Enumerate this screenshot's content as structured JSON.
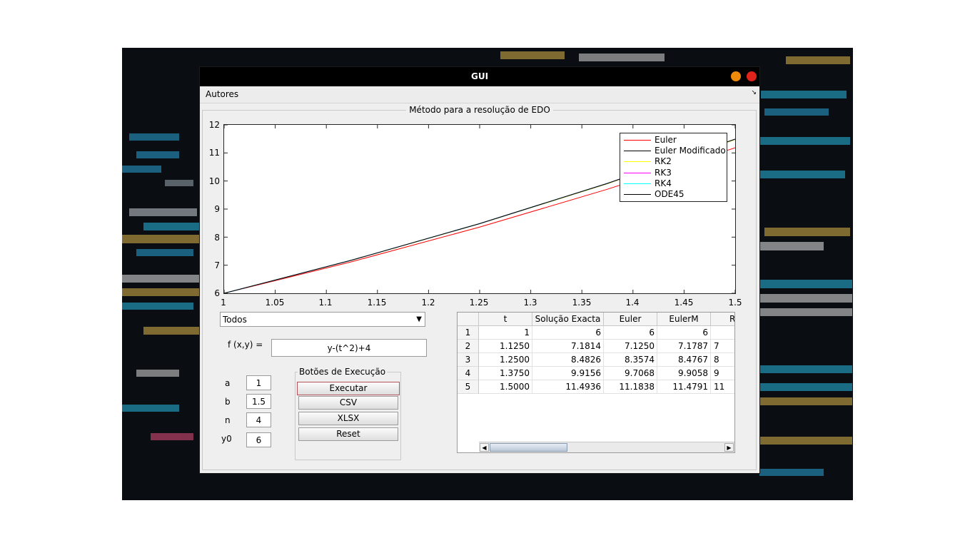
{
  "window": {
    "title": "GUI"
  },
  "menu": {
    "items": [
      "Autores"
    ]
  },
  "panel": {
    "title": "Método para a resolução de EDO"
  },
  "chart_data": {
    "type": "line",
    "x": [
      1,
      1.125,
      1.25,
      1.375,
      1.5
    ],
    "xlim": [
      1,
      1.5
    ],
    "ylim": [
      6,
      12
    ],
    "xticks": [
      "1",
      "1.05",
      "1.1",
      "1.15",
      "1.2",
      "1.25",
      "1.3",
      "1.35",
      "1.4",
      "1.45",
      "1.5"
    ],
    "yticks": [
      "6",
      "7",
      "8",
      "9",
      "10",
      "11",
      "12"
    ],
    "legend_position": "top-right",
    "grid": false,
    "series": [
      {
        "name": "Euler",
        "color": "#ff0000",
        "values": [
          6,
          7.125,
          8.3574,
          9.7068,
          11.1838
        ]
      },
      {
        "name": "Euler Modificado",
        "color": "#000000",
        "values": [
          6,
          7.1787,
          8.4767,
          9.9058,
          11.4791
        ]
      },
      {
        "name": "RK2",
        "color": "#ffff00",
        "values": [
          6,
          7.1787,
          8.4767,
          9.9058,
          11.4791
        ]
      },
      {
        "name": "RK3",
        "color": "#ff00ff",
        "values": [
          6,
          7.1814,
          8.4826,
          9.9156,
          11.4936
        ]
      },
      {
        "name": "RK4",
        "color": "#00ffff",
        "values": [
          6,
          7.1814,
          8.4826,
          9.9156,
          11.4936
        ]
      },
      {
        "name": "ODE45",
        "color": "#000000",
        "values": [
          6,
          7.1814,
          8.4826,
          9.9156,
          11.4936
        ]
      }
    ]
  },
  "method_select": {
    "value": "Todos"
  },
  "function": {
    "label": "f (x,y) =",
    "value": "y-(t^2)+4"
  },
  "params": [
    {
      "label": "a",
      "value": "1"
    },
    {
      "label": "b",
      "value": "1.5"
    },
    {
      "label": "n",
      "value": "4"
    },
    {
      "label": "y0",
      "value": "6"
    }
  ],
  "exec_group": {
    "title": "Botões de Execução",
    "buttons": [
      "Executar",
      "CSV",
      "XLSX",
      "Reset"
    ]
  },
  "table": {
    "columns": [
      "t",
      "Solução Exacta",
      "Euler",
      "EulerM",
      "R"
    ],
    "row_headers": [
      "1",
      "2",
      "3",
      "4",
      "5"
    ],
    "rows": [
      [
        "1",
        "6",
        "6",
        "6",
        ""
      ],
      [
        "1.1250",
        "7.1814",
        "7.1250",
        "7.1787",
        "7"
      ],
      [
        "1.2500",
        "8.4826",
        "8.3574",
        "8.4767",
        "8"
      ],
      [
        "1.3750",
        "9.9156",
        "9.7068",
        "9.9058",
        "9"
      ],
      [
        "1.5000",
        "11.4936",
        "11.1838",
        "11.4791",
        "11"
      ]
    ]
  }
}
